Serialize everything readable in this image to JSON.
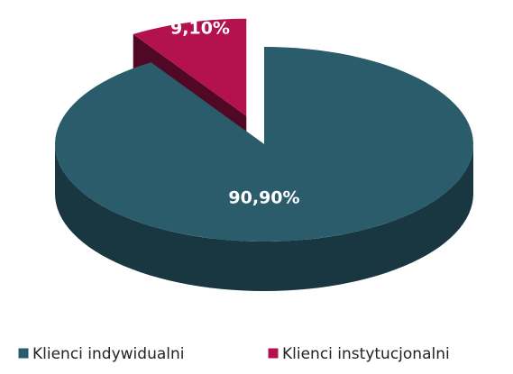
{
  "chart_data": {
    "type": "pie",
    "categories": [
      "Klienci indywidualni",
      "Klienci instytucjonalni"
    ],
    "values": [
      90.9,
      9.1
    ],
    "value_labels": [
      "90,90%",
      "9,10%"
    ],
    "colors": [
      "#2a5c6b",
      "#b3124f"
    ],
    "legend": "bottom"
  }
}
